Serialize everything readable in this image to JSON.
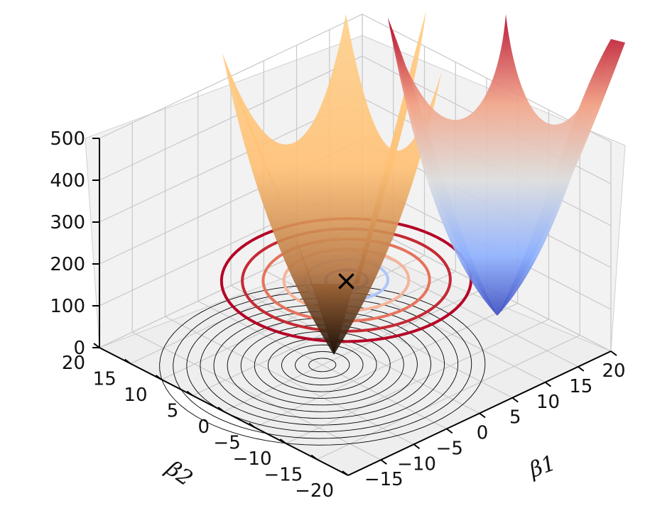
{
  "chart_data": {
    "type": "surface3d",
    "title": "",
    "xlabel": "β1",
    "ylabel": "β2",
    "zlabel": "",
    "xlim": [
      -20,
      20
    ],
    "ylim": [
      -20,
      20
    ],
    "zlim": [
      0,
      500
    ],
    "x_ticks": [
      "−15",
      "−10",
      "−5",
      "0",
      "5",
      "10",
      "15",
      "20"
    ],
    "y_ticks": [
      "−20",
      "−15",
      "−10",
      "−5",
      "0",
      "5",
      "10",
      "15",
      "20"
    ],
    "z_ticks": [
      "0",
      "100",
      "200",
      "300",
      "400",
      "500"
    ],
    "grid": true,
    "surfaces": [
      {
        "colormap": "copper",
        "center": [
          -5,
          0
        ],
        "min_z": 0
      },
      {
        "colormap": "coolwarm",
        "center": [
          10,
          12
        ],
        "min_z": 120
      }
    ],
    "contours": [
      {
        "colormap": "black",
        "center": [
          -5,
          0
        ],
        "count": 12
      },
      {
        "colormap": "coolwarm",
        "center": [
          10,
          12
        ],
        "count": 6
      }
    ],
    "marker": {
      "symbol": "×",
      "x": 10,
      "y": 12,
      "z": 0
    },
    "colors": {
      "pane": "#f2f2f2",
      "grid": "#c8c8c8",
      "copper_low": "#1a0f08",
      "copper_high": "#ffc880",
      "cool": "#3b4cc0",
      "warm": "#b40426"
    }
  }
}
